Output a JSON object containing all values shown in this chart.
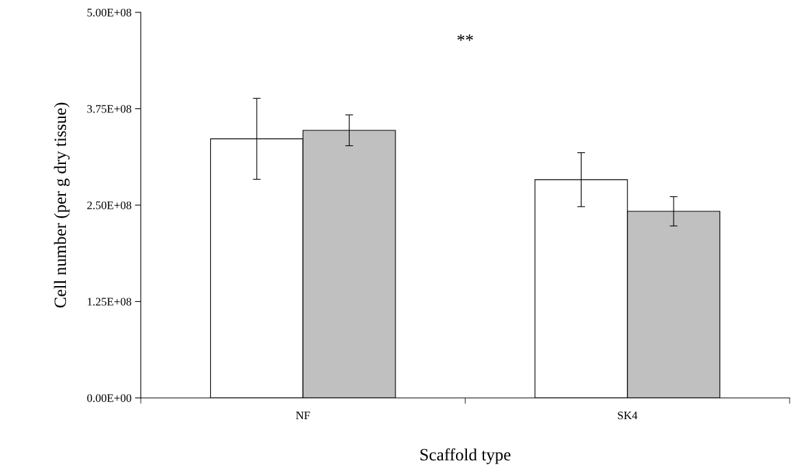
{
  "chart_data": {
    "type": "bar",
    "xlabel": "Scaffold type",
    "ylabel": "Cell number (per g dry tissue)",
    "categories": [
      "NF",
      "SK4"
    ],
    "series": [
      {
        "color": "#ffffff",
        "values": [
          336000000,
          283000000
        ],
        "errors": [
          52500000,
          35000000
        ]
      },
      {
        "color": "#c0c0c0",
        "values": [
          347000000,
          242000000
        ],
        "errors": [
          20000000,
          19000000
        ]
      }
    ],
    "ylim": [
      0,
      500000000
    ],
    "yticks": [
      {
        "value": 0,
        "label": "0.00E+00"
      },
      {
        "value": 125000000,
        "label": "1.25E+08"
      },
      {
        "value": 250000000,
        "label": "2.50E+08"
      },
      {
        "value": 375000000,
        "label": "3.75E+08"
      },
      {
        "value": 500000000,
        "label": "5.00E+08"
      }
    ],
    "grid": false,
    "annotations": [
      "**"
    ]
  }
}
